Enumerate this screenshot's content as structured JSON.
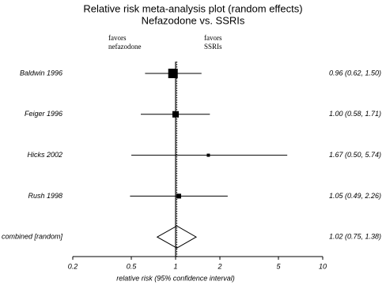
{
  "chart_data": {
    "type": "forest",
    "title": "Relative risk meta-analysis plot (random effects)",
    "subtitle": "Nefazodone vs. SSRIs",
    "left_note": [
      "favors",
      "nefazodone"
    ],
    "right_note": [
      "favors",
      "SSRIs"
    ],
    "categories": [
      "Baldwin 1996",
      "Feiger 1996",
      "Hicks 2002",
      "Rush 1998",
      "combined [random]"
    ],
    "values": [
      0.96,
      1.0,
      1.67,
      1.05,
      1.02
    ],
    "lower": [
      0.62,
      0.58,
      0.5,
      0.49,
      0.75
    ],
    "upper": [
      1.5,
      1.71,
      5.74,
      2.26,
      1.38
    ],
    "weights": [
      55,
      25,
      6,
      14,
      null
    ],
    "value_labels": [
      "0.96 (0.62, 1.50)",
      "1.00 (0.58, 1.71)",
      "1.67 (0.50, 5.74)",
      "1.05 (0.49, 2.26)",
      "1.02 (0.75, 1.38)"
    ],
    "xlabel": "relative risk (95% confidence interval)",
    "log_x": true,
    "xlim": [
      0.2,
      10
    ],
    "xticks": [
      0.2,
      0.5,
      1,
      2,
      5,
      10
    ],
    "color": "#000000"
  }
}
